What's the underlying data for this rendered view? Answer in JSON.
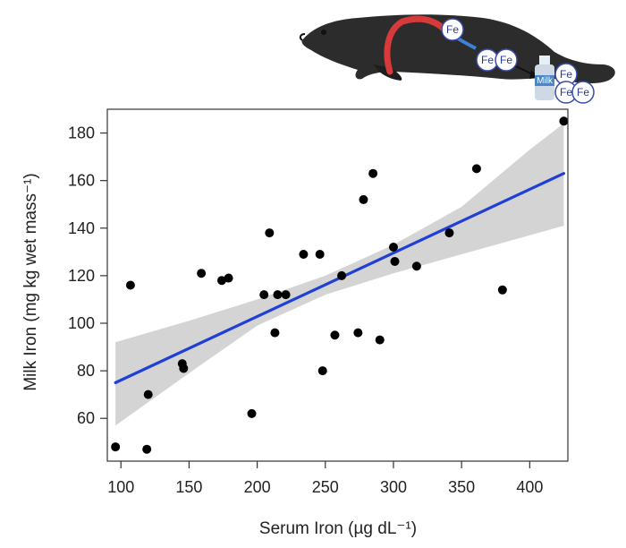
{
  "illustration": {
    "iron_labels": [
      "Fe",
      "Fe",
      "Fe",
      "Fe",
      "Fe",
      "Fe"
    ],
    "bottle_label": "Milk"
  },
  "chart_data": {
    "type": "scatter",
    "title": "",
    "xlabel": "Serum Iron (µg dL⁻¹)",
    "ylabel": "Milk Iron (mg kg wet mass⁻¹)",
    "xlim": [
      90,
      428
    ],
    "ylim": [
      42,
      190
    ],
    "x_ticks": [
      100,
      150,
      200,
      250,
      300,
      350,
      400
    ],
    "y_ticks": [
      60,
      80,
      100,
      120,
      140,
      160,
      180
    ],
    "grid": false,
    "legend": "none",
    "colors": {
      "points": "#000000",
      "fit_line": "#1f3fd6",
      "confidence_band": "#d4d4d4"
    },
    "points": [
      {
        "x": 96,
        "y": 48
      },
      {
        "x": 107,
        "y": 116
      },
      {
        "x": 119,
        "y": 47
      },
      {
        "x": 120,
        "y": 70
      },
      {
        "x": 145,
        "y": 83
      },
      {
        "x": 146,
        "y": 81
      },
      {
        "x": 159,
        "y": 121
      },
      {
        "x": 174,
        "y": 118
      },
      {
        "x": 179,
        "y": 119
      },
      {
        "x": 196,
        "y": 62
      },
      {
        "x": 205,
        "y": 112
      },
      {
        "x": 209,
        "y": 138
      },
      {
        "x": 213,
        "y": 96
      },
      {
        "x": 215,
        "y": 112
      },
      {
        "x": 221,
        "y": 112
      },
      {
        "x": 234,
        "y": 129
      },
      {
        "x": 246,
        "y": 129
      },
      {
        "x": 248,
        "y": 80
      },
      {
        "x": 257,
        "y": 95
      },
      {
        "x": 262,
        "y": 120
      },
      {
        "x": 274,
        "y": 96
      },
      {
        "x": 278,
        "y": 152
      },
      {
        "x": 285,
        "y": 163
      },
      {
        "x": 290,
        "y": 93
      },
      {
        "x": 300,
        "y": 132
      },
      {
        "x": 301,
        "y": 126
      },
      {
        "x": 317,
        "y": 124
      },
      {
        "x": 341,
        "y": 138
      },
      {
        "x": 361,
        "y": 165
      },
      {
        "x": 380,
        "y": 114
      },
      {
        "x": 425,
        "y": 185
      }
    ],
    "fit_line": {
      "x": [
        96,
        425
      ],
      "y": [
        75,
        163
      ]
    },
    "confidence_band": {
      "x": [
        96,
        150,
        200,
        250,
        300,
        350,
        400,
        425
      ],
      "lower": [
        57,
        79,
        99,
        112,
        121,
        129,
        137,
        141
      ],
      "upper": [
        92,
        101,
        110,
        120,
        133,
        149,
        173,
        184
      ]
    }
  }
}
